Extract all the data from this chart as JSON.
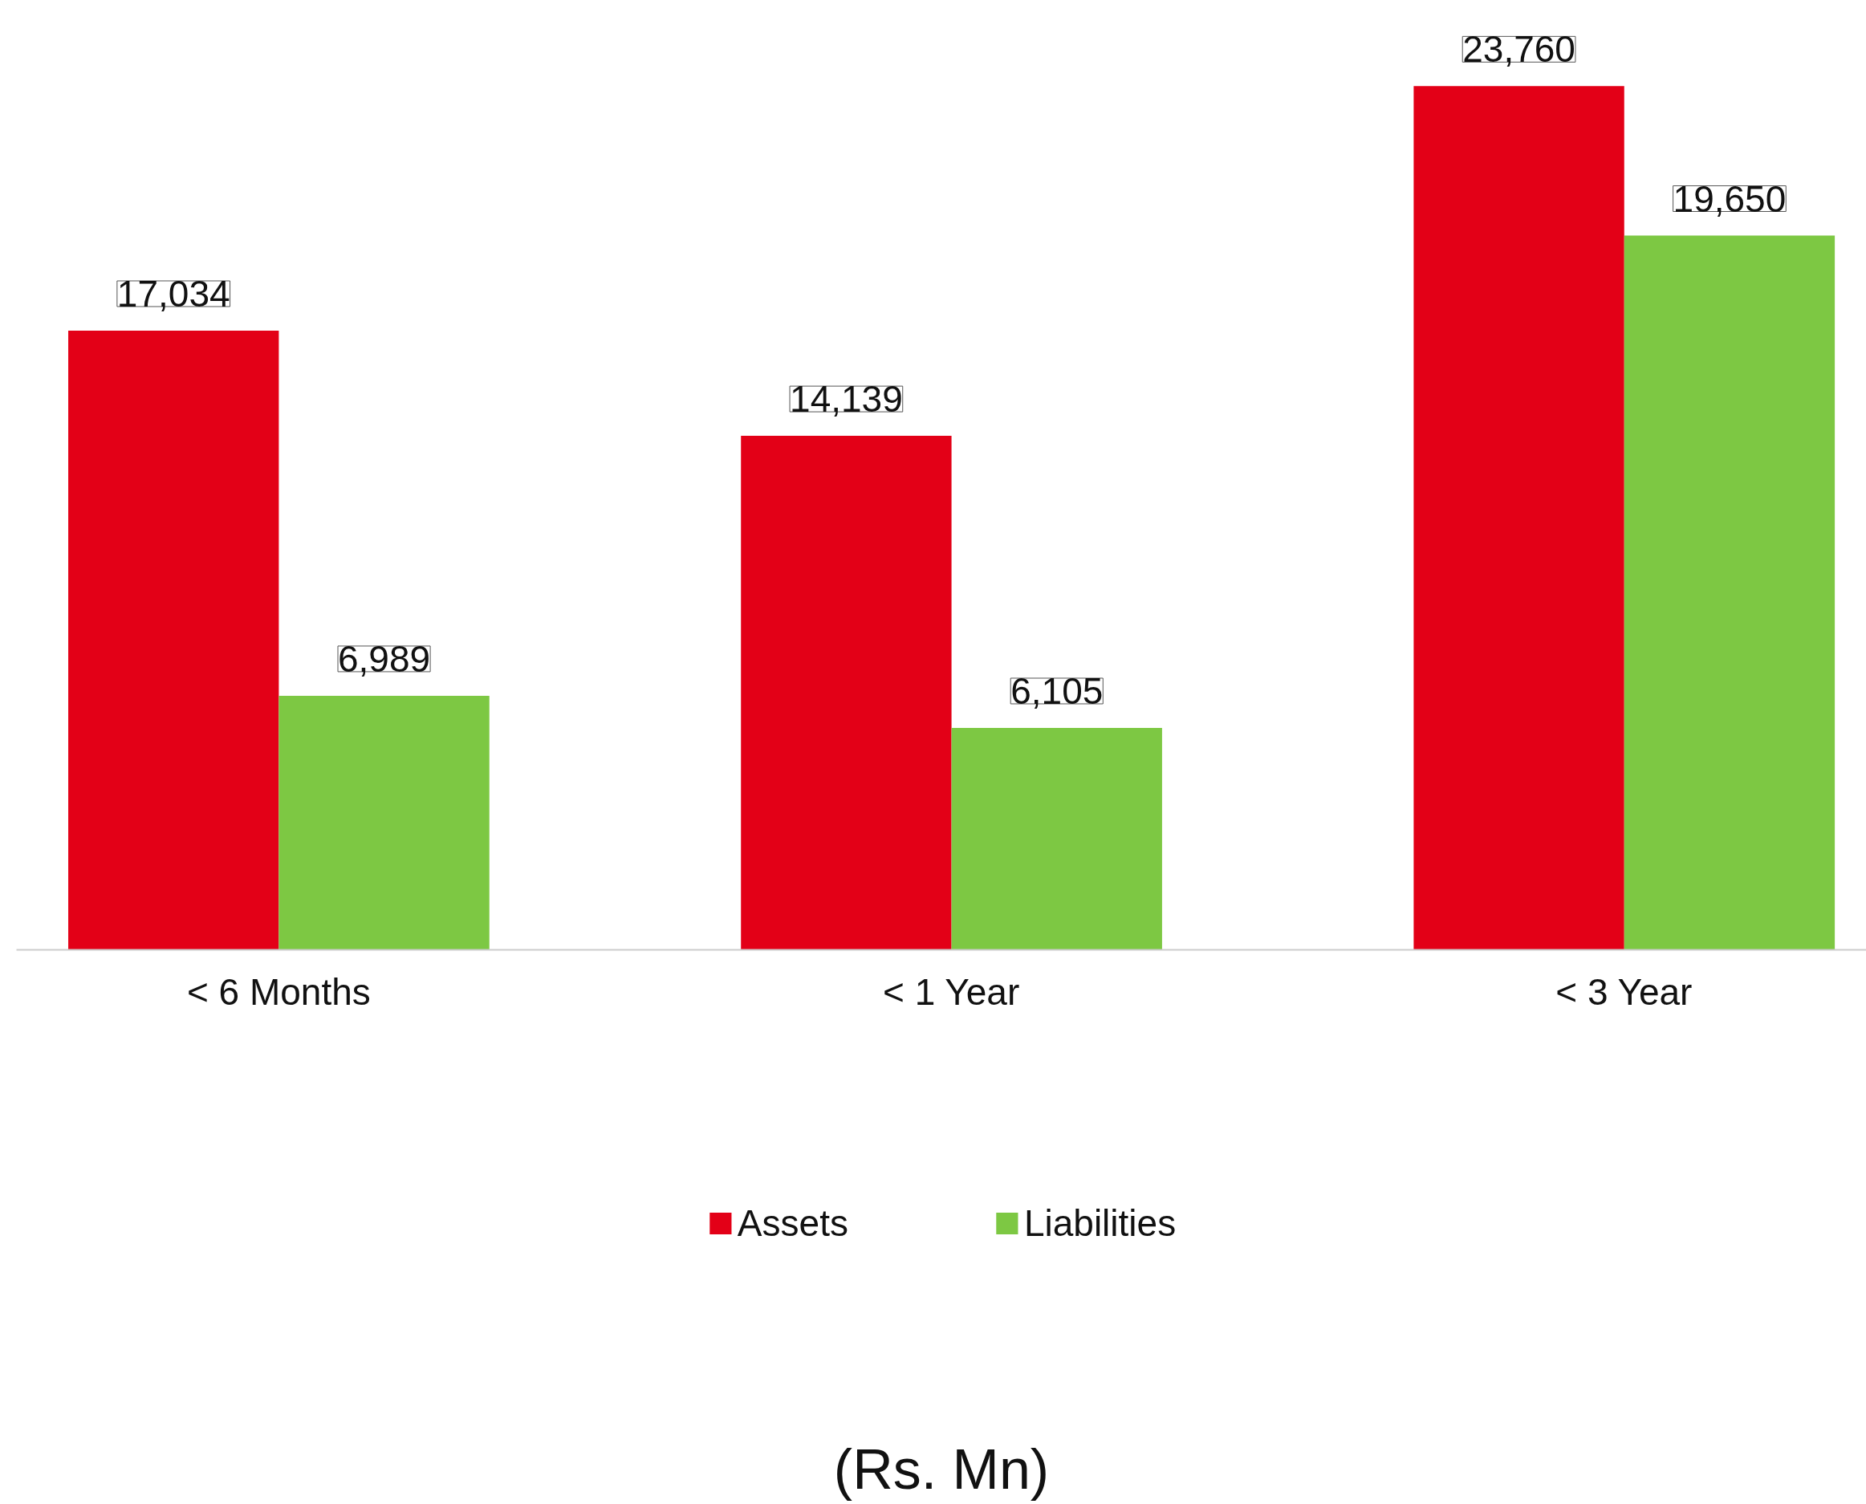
{
  "chart_data": {
    "type": "bar",
    "categories": [
      "< 6 Months",
      "< 1 Year",
      "< 3 Year"
    ],
    "series": [
      {
        "name": "Assets",
        "color": "#e30017",
        "values": [
          17034,
          14139,
          23760
        ],
        "value_labels": [
          "17,034",
          "14,139",
          "23,760"
        ]
      },
      {
        "name": "Liabilities",
        "color": "#7dc843",
        "values": [
          6989,
          6105,
          19650
        ],
        "value_labels": [
          "6,989",
          "6,105",
          "19,650"
        ]
      }
    ],
    "legend": "bottom",
    "grid": false,
    "tick_labels": "x",
    "annotations": [
      "(Rs. Mn)"
    ]
  }
}
